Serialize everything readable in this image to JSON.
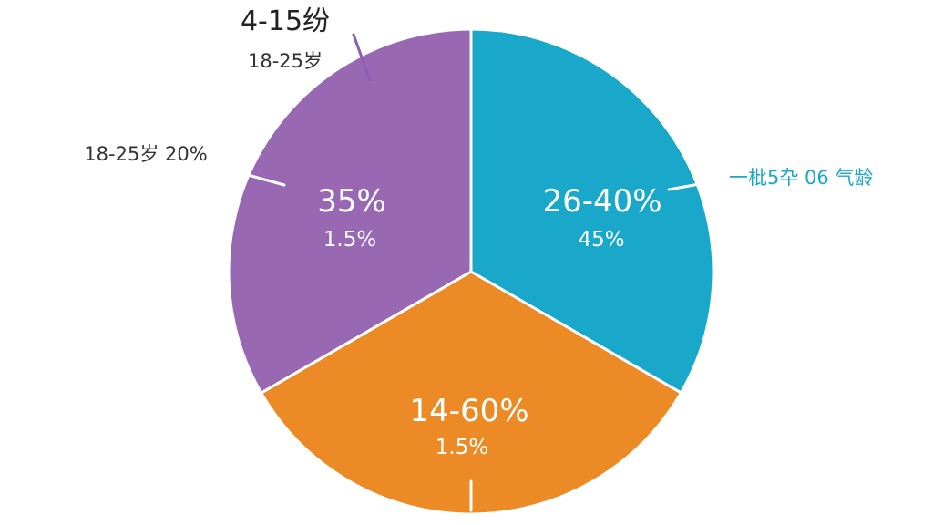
{
  "chart_data": {
    "type": "pie",
    "colors": {
      "teal": "#19a8c9",
      "orange": "#ec8a26",
      "purple": "#9868b3",
      "leader": "#8a5fb0",
      "callout_teal": "#19a8c9",
      "text_dark": "#333333"
    },
    "slices": [
      {
        "id": "teal",
        "value": 33.33,
        "label": "26-40%",
        "sublabel": "45%",
        "color": "#19a8c9"
      },
      {
        "id": "orange",
        "value": 33.33,
        "label": "14-60%",
        "sublabel": "1.5%",
        "color": "#ec8a26"
      },
      {
        "id": "purple",
        "value": 33.34,
        "label": "35%",
        "sublabel": "1.5%",
        "color": "#9868b3"
      }
    ],
    "callouts": [
      {
        "id": "top-title",
        "text": "4-15纷"
      },
      {
        "id": "top-sub",
        "text": "18-25岁"
      },
      {
        "id": "left",
        "text": "18-25岁 20%"
      },
      {
        "id": "right",
        "text": "一枇5卆 06 气龄"
      }
    ]
  }
}
